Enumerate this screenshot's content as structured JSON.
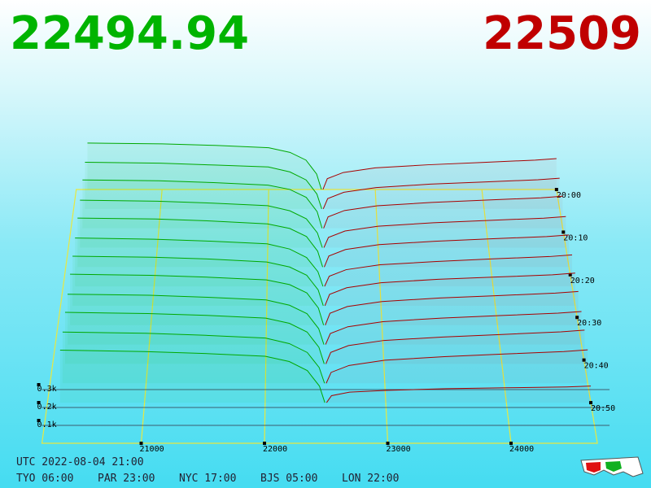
{
  "chart_data": {
    "type": "depth3d",
    "bid_price": 22494.94,
    "ask_price": 22509,
    "bid_color": "#00a800",
    "ask_color": "#a80000",
    "xticks": [
      21000,
      22000,
      23000,
      24000
    ],
    "xlim": [
      20195,
      24700
    ],
    "depth_ticks": [
      {
        "value": 100,
        "label": "0.1k"
      },
      {
        "value": 200,
        "label": "0.2k"
      },
      {
        "value": 300,
        "label": "0.3k"
      }
    ],
    "time_ticks": [
      "20:00",
      "20:10",
      "20:20",
      "20:30",
      "20:40",
      "20:50"
    ],
    "bid_prices": [
      20300,
      21000,
      21500,
      22000,
      22200,
      22350,
      22450,
      22494.94
    ],
    "ask_prices": [
      22509,
      22550,
      22700,
      23000,
      23500,
      24000,
      24500,
      24700
    ],
    "snapshots": [
      {
        "bids": [
          300,
          295,
          285,
          270,
          240,
          190,
          100,
          0
        ],
        "asks": [
          0,
          70,
          110,
          140,
          160,
          175,
          190,
          200
        ]
      },
      {
        "bids": [
          298,
          292,
          280,
          268,
          236,
          185,
          95,
          0
        ],
        "asks": [
          0,
          66,
          106,
          136,
          158,
          172,
          186,
          196
        ]
      },
      {
        "bids": [
          305,
          300,
          288,
          272,
          245,
          195,
          105,
          0
        ],
        "asks": [
          0,
          72,
          112,
          142,
          163,
          178,
          192,
          202
        ]
      },
      {
        "bids": [
          296,
          290,
          278,
          262,
          230,
          180,
          92,
          0
        ],
        "asks": [
          0,
          64,
          104,
          134,
          155,
          170,
          184,
          194
        ]
      },
      {
        "bids": [
          302,
          296,
          284,
          266,
          238,
          188,
          98,
          0
        ],
        "asks": [
          0,
          68,
          108,
          138,
          159,
          174,
          188,
          198
        ]
      },
      {
        "bids": [
          295,
          288,
          276,
          260,
          228,
          176,
          90,
          0
        ],
        "asks": [
          0,
          62,
          102,
          132,
          152,
          168,
          182,
          192
        ]
      },
      {
        "bids": [
          299,
          293,
          282,
          264,
          234,
          184,
          96,
          0
        ],
        "asks": [
          0,
          69,
          109,
          139,
          160,
          173,
          187,
          197
        ]
      },
      {
        "bids": [
          304,
          297,
          286,
          270,
          242,
          192,
          102,
          0
        ],
        "asks": [
          0,
          71,
          111,
          141,
          162,
          176,
          191,
          201
        ]
      },
      {
        "bids": [
          297,
          291,
          279,
          263,
          232,
          182,
          94,
          0
        ],
        "asks": [
          0,
          65,
          105,
          135,
          156,
          171,
          185,
          195
        ]
      },
      {
        "bids": [
          301,
          294,
          283,
          267,
          237,
          186,
          97,
          0
        ],
        "asks": [
          0,
          67,
          107,
          137,
          157,
          172,
          187,
          197
        ]
      },
      {
        "bids": [
          296,
          289,
          277,
          261,
          229,
          178,
          91,
          0
        ],
        "asks": [
          0,
          63,
          103,
          133,
          154,
          169,
          183,
          193
        ]
      },
      {
        "bids": [
          300,
          292,
          281,
          265,
          235,
          183,
          95,
          0
        ],
        "asks": [
          0,
          40,
          60,
          70,
          80,
          85,
          90,
          95
        ]
      }
    ],
    "utc_label": "UTC 2022-08-04 21:00",
    "world_clocks": [
      "TYO 06:00",
      "PAR 23:00",
      "NYC 17:00",
      "BJS 05:00",
      "LON 22:00"
    ]
  }
}
